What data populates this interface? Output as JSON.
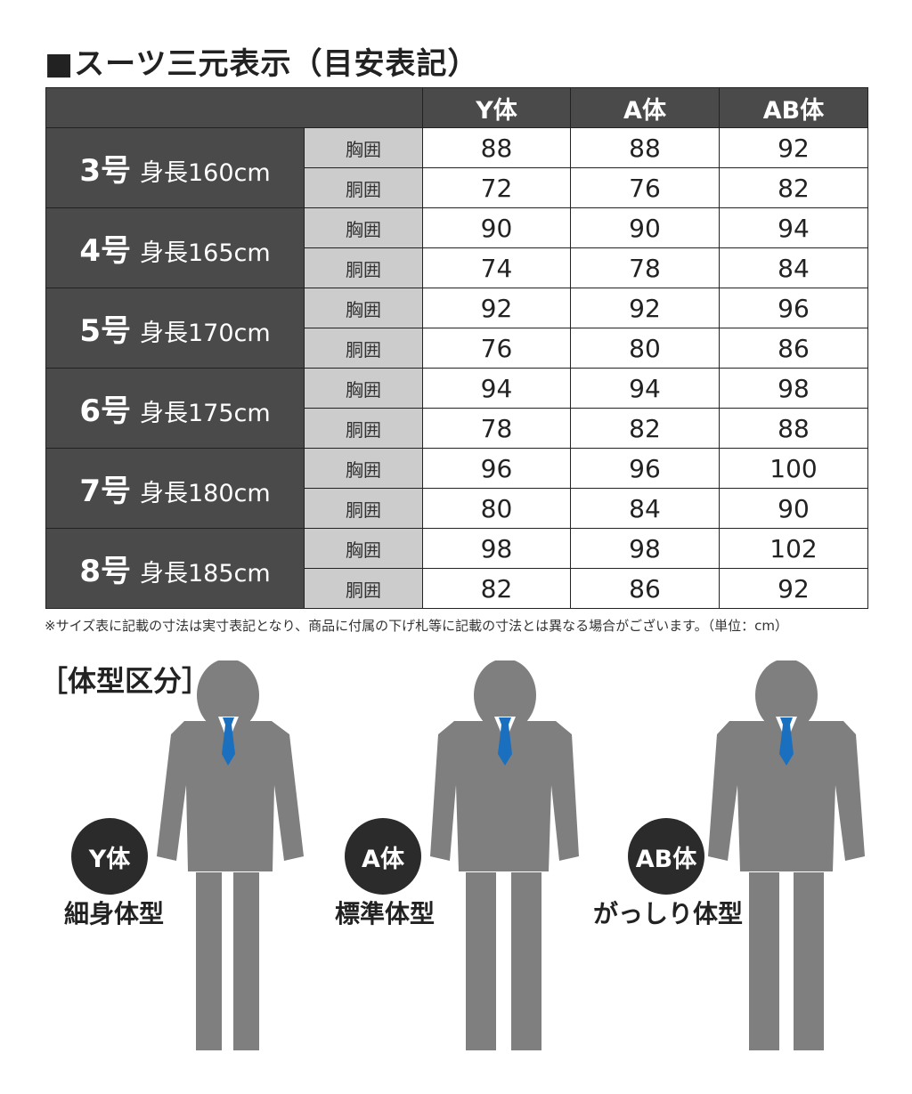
{
  "title": "■スーツ三元表示（目安表記）",
  "columns": [
    "Y体",
    "A体",
    "AB体"
  ],
  "measure_labels": {
    "chest": "胸囲",
    "waist": "胴囲"
  },
  "rows": [
    {
      "size": "3号",
      "height": "身長160cm",
      "chest": [
        "88",
        "88",
        "92"
      ],
      "waist": [
        "72",
        "76",
        "82"
      ]
    },
    {
      "size": "4号",
      "height": "身長165cm",
      "chest": [
        "90",
        "90",
        "94"
      ],
      "waist": [
        "74",
        "78",
        "84"
      ]
    },
    {
      "size": "5号",
      "height": "身長170cm",
      "chest": [
        "92",
        "92",
        "96"
      ],
      "waist": [
        "76",
        "80",
        "86"
      ]
    },
    {
      "size": "6号",
      "height": "身長175cm",
      "chest": [
        "94",
        "94",
        "98"
      ],
      "waist": [
        "78",
        "82",
        "88"
      ]
    },
    {
      "size": "7号",
      "height": "身長180cm",
      "chest": [
        "96",
        "96",
        "100"
      ],
      "waist": [
        "80",
        "84",
        "90"
      ]
    },
    {
      "size": "8号",
      "height": "身長185cm",
      "chest": [
        "98",
        "98",
        "102"
      ],
      "waist": [
        "82",
        "86",
        "92"
      ]
    }
  ],
  "note": "※サイズ表に記載の寸法は実寸表記となり、商品に付属の下げ札等に記載の寸法とは異なる場合がございます。（単位：cm）",
  "body_types_title": "［体型区分］",
  "body_types": [
    {
      "badge": "Y体",
      "caption": "細身体型"
    },
    {
      "badge": "A体",
      "caption": "標準体型"
    },
    {
      "badge": "AB体",
      "caption": "がっしり体型"
    }
  ],
  "colors": {
    "header_bg": "#4a4a4a",
    "measure_bg": "#cccccc",
    "suit": "#7f7f7f",
    "tie": "#1a6fbe",
    "badge_bg": "#2b2b2b"
  }
}
